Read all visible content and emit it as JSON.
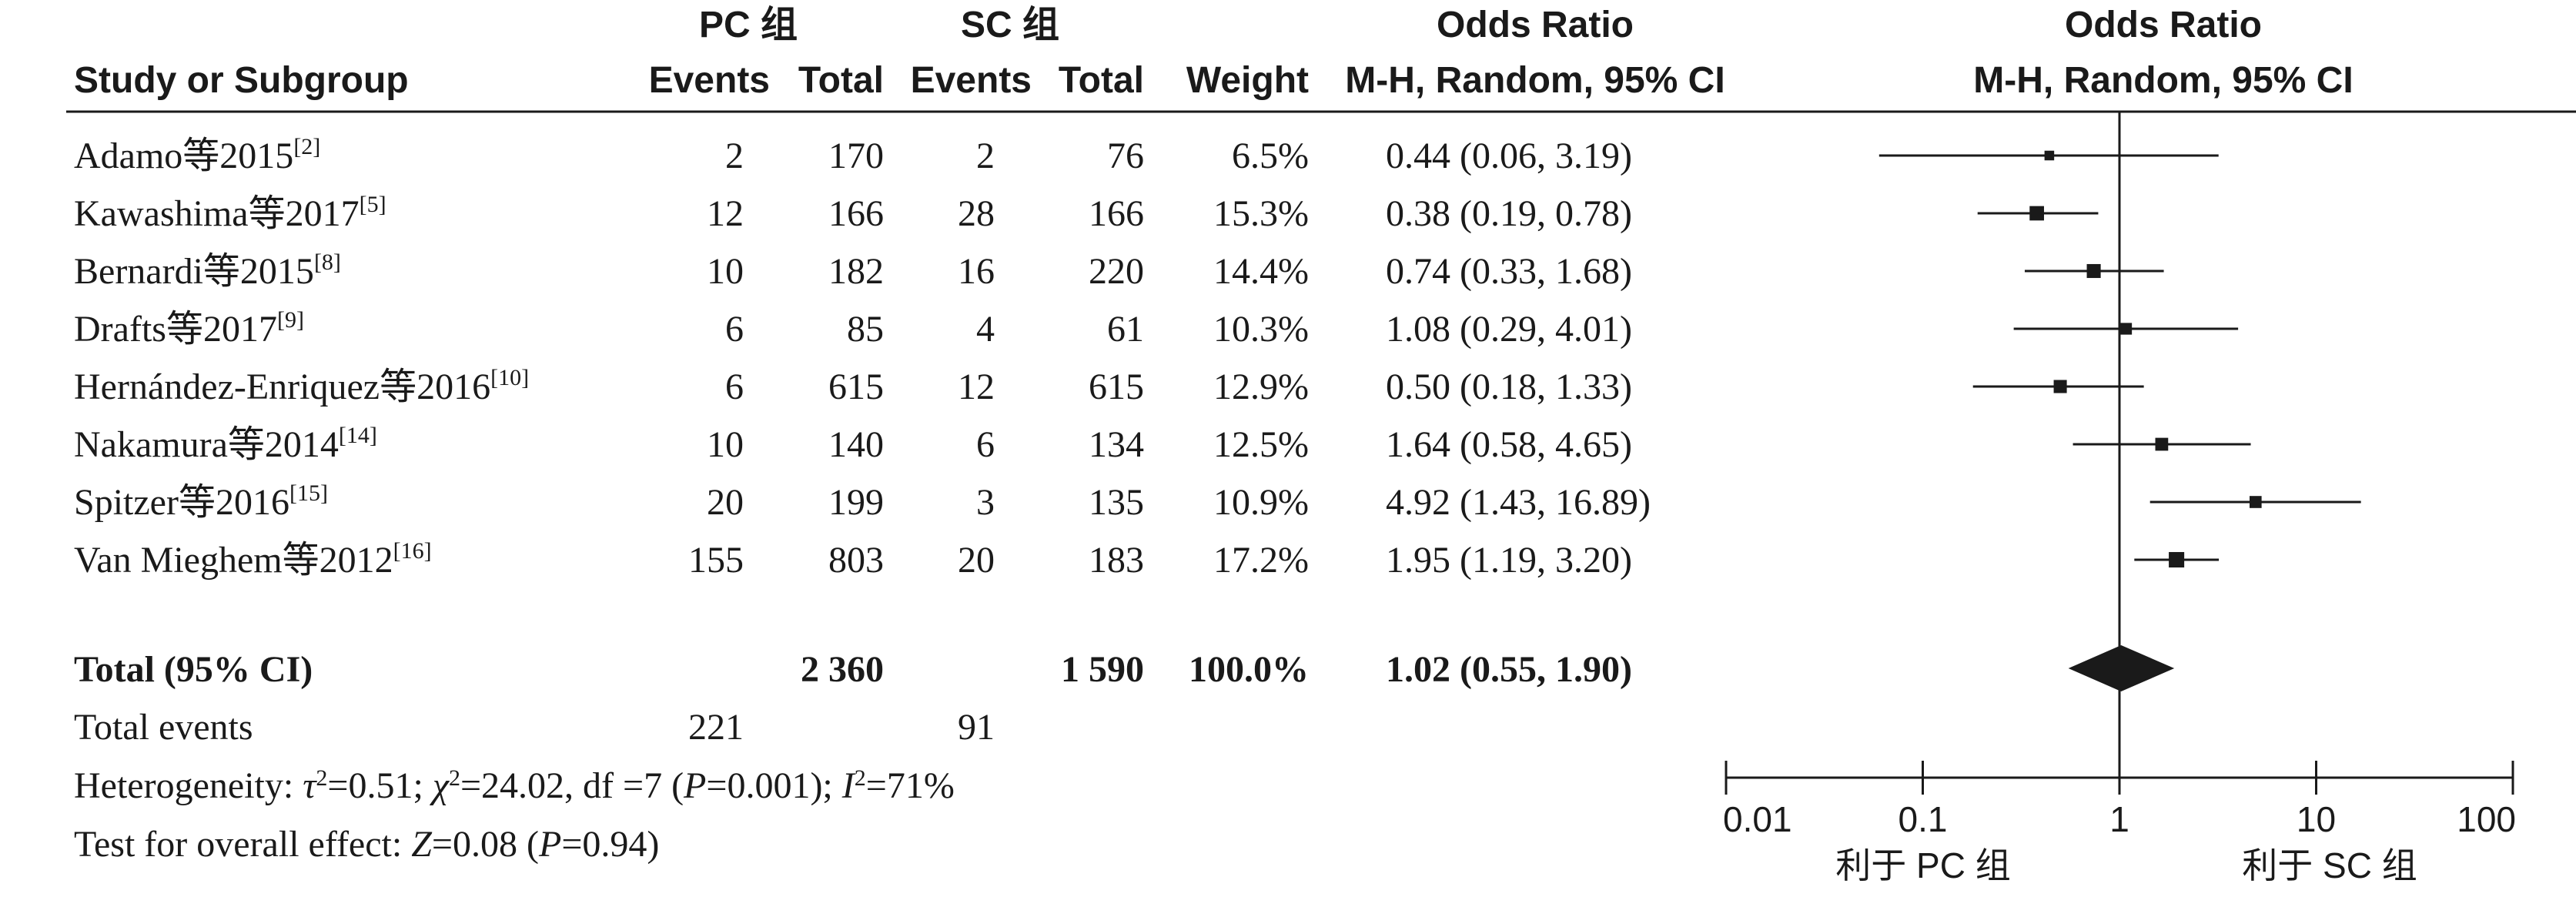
{
  "header": {
    "pc_group": "PC 组",
    "sc_group": "SC 组",
    "study_col": "Study or Subgroup",
    "events": "Events",
    "total": "Total",
    "weight": "Weight",
    "or_title": "Odds Ratio",
    "or_method": "M-H, Random, 95% CI",
    "plot_title": "Odds Ratio",
    "plot_method": "M-H, Random, 95% CI"
  },
  "chart_data": {
    "type": "forest",
    "scale": "log",
    "xlim": [
      0.01,
      100
    ],
    "x_ticks": [
      0.01,
      0.1,
      1,
      10,
      100
    ],
    "x_tick_labels": [
      "0.01",
      "0.1",
      "1",
      "10",
      "100"
    ],
    "favours_left": "利于 PC 组",
    "favours_right": "利于 SC 组",
    "studies": [
      {
        "name": "Adamo等2015",
        "ref": "[2]",
        "pc_events": "2",
        "pc_total": "170",
        "sc_events": "2",
        "sc_total": "76",
        "weight": "6.5%",
        "ci_text": "0.44 (0.06, 3.19)",
        "or": 0.44,
        "lo": 0.06,
        "hi": 3.19
      },
      {
        "name": "Kawashima等2017",
        "ref": "[5]",
        "pc_events": "12",
        "pc_total": "166",
        "sc_events": "28",
        "sc_total": "166",
        "weight": "15.3%",
        "ci_text": "0.38 (0.19, 0.78)",
        "or": 0.38,
        "lo": 0.19,
        "hi": 0.78
      },
      {
        "name": "Bernardi等2015",
        "ref": "[8]",
        "pc_events": "10",
        "pc_total": "182",
        "sc_events": "16",
        "sc_total": "220",
        "weight": "14.4%",
        "ci_text": "0.74 (0.33, 1.68)",
        "or": 0.74,
        "lo": 0.33,
        "hi": 1.68
      },
      {
        "name": "Drafts等2017",
        "ref": "[9]",
        "pc_events": "6",
        "pc_total": "85",
        "sc_events": "4",
        "sc_total": "61",
        "weight": "10.3%",
        "ci_text": "1.08 (0.29, 4.01)",
        "or": 1.08,
        "lo": 0.29,
        "hi": 4.01
      },
      {
        "name": "Hernández-Enriquez等2016",
        "ref": "[10]",
        "pc_events": "6",
        "pc_total": "615",
        "sc_events": "12",
        "sc_total": "615",
        "weight": "12.9%",
        "ci_text": "0.50 (0.18, 1.33)",
        "or": 0.5,
        "lo": 0.18,
        "hi": 1.33
      },
      {
        "name": "Nakamura等2014",
        "ref": "[14]",
        "pc_events": "10",
        "pc_total": "140",
        "sc_events": "6",
        "sc_total": "134",
        "weight": "12.5%",
        "ci_text": "1.64 (0.58, 4.65)",
        "or": 1.64,
        "lo": 0.58,
        "hi": 4.65
      },
      {
        "name": "Spitzer等2016",
        "ref": "[15]",
        "pc_events": "20",
        "pc_total": "199",
        "sc_events": "3",
        "sc_total": "135",
        "weight": "10.9%",
        "ci_text": "4.92 (1.43, 16.89)",
        "or": 4.92,
        "lo": 1.43,
        "hi": 16.89
      },
      {
        "name": "Van Mieghem等2012",
        "ref": "[16]",
        "pc_events": "155",
        "pc_total": "803",
        "sc_events": "20",
        "sc_total": "183",
        "weight": "17.2%",
        "ci_text": "1.95 (1.19, 3.20)",
        "or": 1.95,
        "lo": 1.19,
        "hi": 3.2
      }
    ],
    "total": {
      "label": "Total (95% CI)",
      "pc_total": "2 360",
      "sc_total": "1 590",
      "weight": "100.0%",
      "ci_text": "1.02 (0.55, 1.90)",
      "or": 1.02,
      "lo": 0.55,
      "hi": 1.9
    },
    "total_events": {
      "label": "Total events",
      "pc": "221",
      "sc": "91"
    },
    "heterogeneity": {
      "label": "Heterogeneity: ",
      "tau2_value": "=0.51; ",
      "chi2_value": "=24.02, df =7 (",
      "p_value": "=0.001); ",
      "i2_value": "=71%"
    },
    "overall_effect": {
      "label": "Test for overall effect: ",
      "z_value": "=0.08 (",
      "p_value": "=0.94)"
    }
  }
}
